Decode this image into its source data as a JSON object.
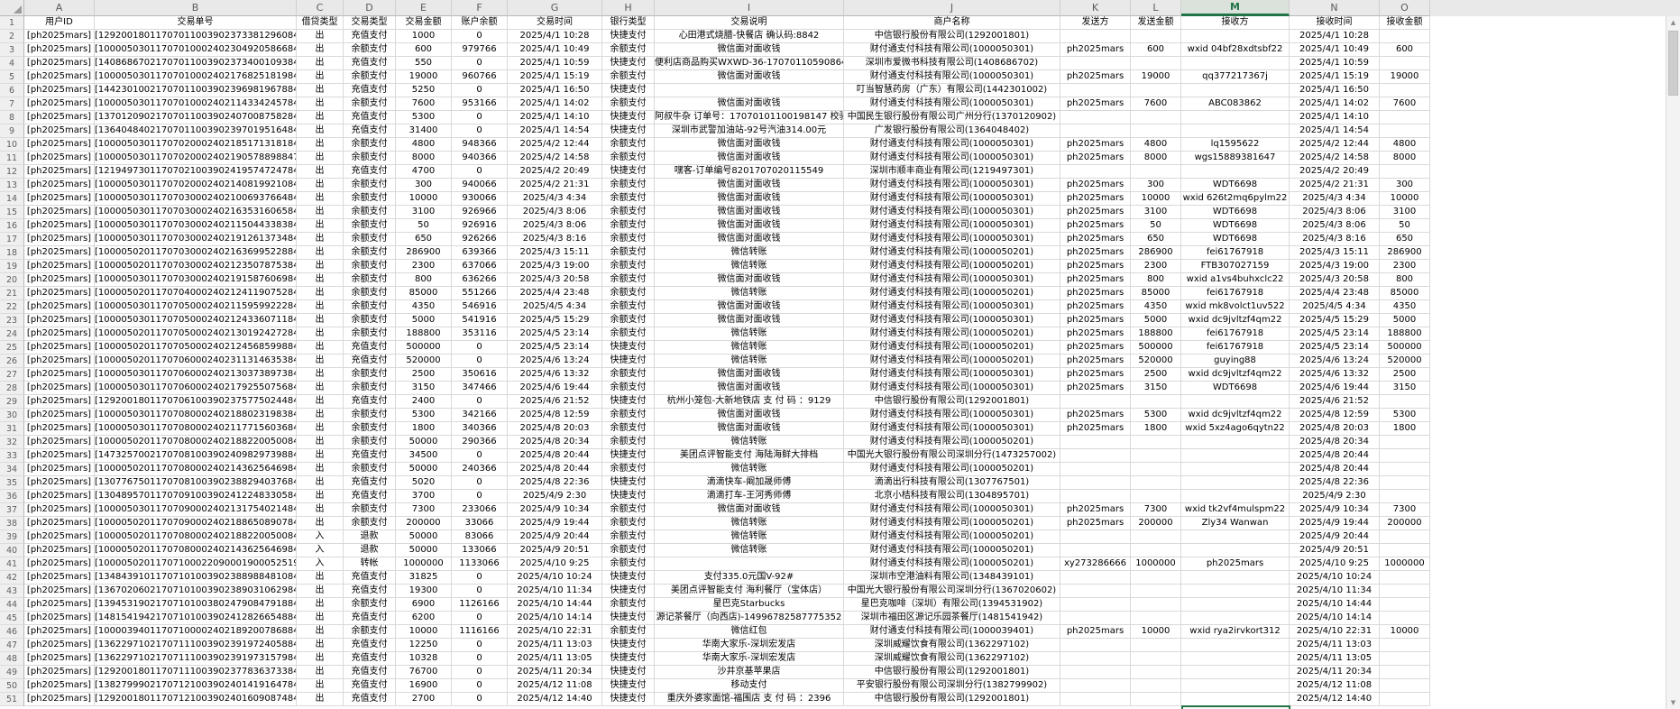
{
  "sheet": {
    "column_letters": [
      "A",
      "B",
      "C",
      "D",
      "E",
      "F",
      "G",
      "H",
      "I",
      "J",
      "K",
      "L",
      "M",
      "N",
      "O"
    ],
    "selection": {
      "active_column": "M"
    },
    "first_data_row_number": 2,
    "title_row": [
      "用户ID",
      "交易单号",
      "借贷类型",
      "交易类型",
      "交易金额",
      "账户余额",
      "交易时间",
      "银行类型",
      "交易说明",
      "商户名称",
      "发送方",
      "发送金额",
      "接收方",
      "接收时间",
      "接收金额"
    ],
    "rows": [
      [
        "[ph2025mars]",
        "[129200180117070110039023733812960847]",
        "出",
        "充值支付",
        "1000",
        "0",
        "2025/4/1 10:28",
        "快捷支付",
        "心田港式烧腊-快餐店 确认码:8842",
        "中信银行股份有限公司(1292001801)",
        "",
        "",
        "",
        "2025/4/1 10:28",
        ""
      ],
      [
        "[ph2025mars]",
        "[100005030117070100024023049205866847]",
        "出",
        "余额支付",
        "600",
        "979766",
        "2025/4/1 10:49",
        "余额支付",
        "微信面对面收钱",
        "财付通支付科技有限公司(1000050301)",
        "ph2025mars",
        "600",
        "wxid 04bf28xdtsbf22",
        "2025/4/1 10:49",
        "600"
      ],
      [
        "[ph2025mars]",
        "[140868670217070110039023734001093847]",
        "出",
        "充值支付",
        "550",
        "0",
        "2025/4/1 10:59",
        "快捷支付",
        "便利店商品购买WXWD-36-17070110590864",
        "深圳市爱微书科技有限公司(1408686702)",
        "",
        "",
        "",
        "2025/4/1 10:59",
        ""
      ],
      [
        "[ph2025mars]",
        "[100005030117070100024021768251819847]",
        "出",
        "余额支付",
        "19000",
        "960766",
        "2025/4/1 15:19",
        "余额支付",
        "微信面对面收钱",
        "财付通支付科技有限公司(1000050301)",
        "ph2025mars",
        "19000",
        "qq377217367j",
        "2025/4/1 15:19",
        "19000"
      ],
      [
        "[ph2025mars]",
        "[144230100217070110039023969819678847]",
        "出",
        "充值支付",
        "5250",
        "0",
        "2025/4/1 16:50",
        "快捷支付",
        "",
        "叮当智慧药房（广东）有限公司(1442301002)",
        "",
        "",
        "",
        "2025/4/1 16:50",
        ""
      ],
      [
        "[ph2025mars]",
        "[100005030117070100024021143342457847]",
        "出",
        "余额支付",
        "7600",
        "953166",
        "2025/4/1 14:02",
        "余额支付",
        "微信面对面收钱",
        "财付通支付科技有限公司(1000050301)",
        "ph2025mars",
        "7600",
        "ABC083862",
        "2025/4/1 14:02",
        "7600"
      ],
      [
        "[ph2025mars]",
        "[137012090217070110039024070087582847]",
        "出",
        "充值支付",
        "5300",
        "0",
        "2025/4/1 14:10",
        "快捷支付",
        "阿叔牛杂 订单号：17070101100198147 校验码",
        "中国民生银行股份有限公司广州分行(1370120902)",
        "",
        "",
        "",
        "2025/4/1 14:10",
        ""
      ],
      [
        "[ph2025mars]",
        "[136404840217070110039023970195164847]",
        "出",
        "充值支付",
        "31400",
        "0",
        "2025/4/1 14:54",
        "快捷支付",
        "深圳市武警加油站-92号汽油314.00元",
        "广发银行股份有限公司(1364048402)",
        "",
        "",
        "",
        "2025/4/1 14:54",
        ""
      ],
      [
        "[ph2025mars]",
        "[100005030117070200024021851713181847]",
        "出",
        "余额支付",
        "4800",
        "948366",
        "2025/4/2 12:44",
        "余额支付",
        "微信面对面收钱",
        "财付通支付科技有限公司(1000050301)",
        "ph2025mars",
        "4800",
        "lq1595622",
        "2025/4/2 12:44",
        "4800"
      ],
      [
        "[ph2025mars]",
        "[10000503011707020002402190578898847]",
        "出",
        "余额支付",
        "8000",
        "940366",
        "2025/4/2 14:58",
        "余额支付",
        "微信面对面收钱",
        "财付通支付科技有限公司(1000050301)",
        "ph2025mars",
        "8000",
        "wgs15889381647",
        "2025/4/2 14:58",
        "8000"
      ],
      [
        "[ph2025mars]",
        "[121949730117070210039024195747247847]",
        "出",
        "充值支付",
        "4700",
        "0",
        "2025/4/2 20:49",
        "快捷支付",
        "嘿客-订单编号8201707020115549",
        "深圳市顺丰商业有限公司(1219497301)",
        "",
        "",
        "",
        "2025/4/2 20:49",
        ""
      ],
      [
        "[ph2025mars]",
        "[100005030117070200024021408199210847]",
        "出",
        "余额支付",
        "300",
        "940066",
        "2025/4/2 21:31",
        "余额支付",
        "微信面对面收钱",
        "财付通支付科技有限公司(1000050301)",
        "ph2025mars",
        "300",
        "WDT6698",
        "2025/4/2 21:31",
        "300"
      ],
      [
        "[ph2025mars]",
        "[100005030117070300024021006937664847]",
        "出",
        "余额支付",
        "10000",
        "930066",
        "2025/4/3 4:34",
        "余额支付",
        "微信面对面收钱",
        "财付通支付科技有限公司(1000050301)",
        "ph2025mars",
        "10000",
        "wxid 626t2mq6pylm22",
        "2025/4/3 4:34",
        "10000"
      ],
      [
        "[ph2025mars]",
        "[100005030117070300024021635316065847]",
        "出",
        "余额支付",
        "3100",
        "926966",
        "2025/4/3 8:06",
        "余额支付",
        "微信面对面收钱",
        "财付通支付科技有限公司(1000050301)",
        "ph2025mars",
        "3100",
        "WDT6698",
        "2025/4/3 8:06",
        "3100"
      ],
      [
        "[ph2025mars]",
        "[100005030117070300024021150443383847]",
        "出",
        "余额支付",
        "50",
        "926916",
        "2025/4/3 8:06",
        "余额支付",
        "微信面对面收钱",
        "财付通支付科技有限公司(1000050301)",
        "ph2025mars",
        "50",
        "WDT6698",
        "2025/4/3 8:06",
        "50"
      ],
      [
        "[ph2025mars]",
        "[100005030117070300024021912613734847]",
        "出",
        "余额支付",
        "650",
        "926266",
        "2025/4/3 8:16",
        "余额支付",
        "微信面对面收钱",
        "财付通支付科技有限公司(1000050301)",
        "ph2025mars",
        "650",
        "WDT6698",
        "2025/4/3 8:16",
        "650"
      ],
      [
        "[ph2025mars]",
        "[100005020117070300024021636995228847]",
        "出",
        "余额支付",
        "286900",
        "639366",
        "2025/4/3 15:11",
        "余额支付",
        "微信转账",
        "财付通支付科技有限公司(1000050201)",
        "ph2025mars",
        "286900",
        "fei61767918",
        "2025/4/3 15:11",
        "286900"
      ],
      [
        "[ph2025mars]",
        "[100005020117070300024021235078753847]",
        "出",
        "余额支付",
        "2300",
        "637066",
        "2025/4/3 19:00",
        "余额支付",
        "微信转账",
        "财付通支付科技有限公司(1000050201)",
        "ph2025mars",
        "2300",
        "FTB307027159",
        "2025/4/3 19:00",
        "2300"
      ],
      [
        "[ph2025mars]",
        "[100005030117070300024021915876069847]",
        "出",
        "余额支付",
        "800",
        "636266",
        "2025/4/3 20:58",
        "余额支付",
        "微信面对面收钱",
        "财付通支付科技有限公司(1000050301)",
        "ph2025mars",
        "800",
        "wxid a1vs4buhxclc22",
        "2025/4/3 20:58",
        "800"
      ],
      [
        "[ph2025mars]",
        "[100005020117070400024021241190752847]",
        "出",
        "余额支付",
        "85000",
        "551266",
        "2025/4/4 23:48",
        "余额支付",
        "微信转账",
        "财付通支付科技有限公司(1000050201)",
        "ph2025mars",
        "85000",
        "fei61767918",
        "2025/4/4 23:48",
        "85000"
      ],
      [
        "[ph2025mars]",
        "[100005030117070500024021159599222847]",
        "出",
        "余额支付",
        "4350",
        "546916",
        "2025/4/5 4:34",
        "余额支付",
        "微信面对面收钱",
        "财付通支付科技有限公司(1000050301)",
        "ph2025mars",
        "4350",
        "wxid mk8volct1uv522",
        "2025/4/5 4:34",
        "4350"
      ],
      [
        "[ph2025mars]",
        "[100005030117070500024021243360711847]",
        "出",
        "余额支付",
        "5000",
        "541916",
        "2025/4/5 15:29",
        "余额支付",
        "微信面对面收钱",
        "财付通支付科技有限公司(1000050301)",
        "ph2025mars",
        "5000",
        "wxid dc9jvltzf4qm22",
        "2025/4/5 15:29",
        "5000"
      ],
      [
        "[ph2025mars]",
        "[100005020117070500024021301924272847]",
        "出",
        "余额支付",
        "188800",
        "353116",
        "2025/4/5 23:14",
        "余额支付",
        "微信转账",
        "财付通支付科技有限公司(1000050201)",
        "ph2025mars",
        "188800",
        "fei61767918",
        "2025/4/5 23:14",
        "188800"
      ],
      [
        "[ph2025mars]",
        "[100005020117070500024021245685998847]",
        "出",
        "充值支付",
        "500000",
        "0",
        "2025/4/5 23:14",
        "快捷支付",
        "微信转账",
        "财付通支付科技有限公司(1000050201)",
        "ph2025mars",
        "500000",
        "fei61767918",
        "2025/4/5 23:14",
        "500000"
      ],
      [
        "[ph2025mars]",
        "[100005020117070600024023113146353847]",
        "出",
        "充值支付",
        "520000",
        "0",
        "2025/4/6 13:24",
        "快捷支付",
        "微信转账",
        "财付通支付科技有限公司(1000050201)",
        "ph2025mars",
        "520000",
        "guying88",
        "2025/4/6 13:24",
        "520000"
      ],
      [
        "[ph2025mars]",
        "[100005030117070600024021303738973847]",
        "出",
        "余额支付",
        "2500",
        "350616",
        "2025/4/6 13:32",
        "余额支付",
        "微信面对面收钱",
        "财付通支付科技有限公司(1000050301)",
        "ph2025mars",
        "2500",
        "wxid dc9jvltzf4qm22",
        "2025/4/6 13:32",
        "2500"
      ],
      [
        "[ph2025mars]",
        "[100005030117070600024021792550756847]",
        "出",
        "余额支付",
        "3150",
        "347466",
        "2025/4/6 19:44",
        "余额支付",
        "微信面对面收钱",
        "财付通支付科技有限公司(1000050301)",
        "ph2025mars",
        "3150",
        "WDT6698",
        "2025/4/6 19:44",
        "3150"
      ],
      [
        "[ph2025mars]",
        "[129200180117070610039023757750244847]",
        "出",
        "充值支付",
        "2400",
        "0",
        "2025/4/6 21:52",
        "快捷支付",
        "杭州小笼包-大新地铁店 支 付 码 ：9129",
        "中信银行股份有限公司(1292001801)",
        "",
        "",
        "",
        "2025/4/6 21:52",
        ""
      ],
      [
        "[ph2025mars]",
        "[100005030117070800024021880231983847]",
        "出",
        "余额支付",
        "5300",
        "342166",
        "2025/4/8 12:59",
        "余额支付",
        "微信面对面收钱",
        "财付通支付科技有限公司(1000050301)",
        "ph2025mars",
        "5300",
        "wxid dc9jvltzf4qm22",
        "2025/4/8 12:59",
        "5300"
      ],
      [
        "[ph2025mars]",
        "[100005030117070800024021177156036847]",
        "出",
        "余额支付",
        "1800",
        "340366",
        "2025/4/8 20:03",
        "余额支付",
        "微信面对面收钱",
        "财付通支付科技有限公司(1000050301)",
        "ph2025mars",
        "1800",
        "wxid 5xz4ago6qytn22",
        "2025/4/8 20:03",
        "1800"
      ],
      [
        "[ph2025mars]",
        "[100005020117070800024021882200500847]",
        "出",
        "余额支付",
        "50000",
        "290366",
        "2025/4/8 20:34",
        "余额支付",
        "微信转账",
        "财付通支付科技有限公司(1000050201)",
        "",
        "",
        "",
        "2025/4/8 20:34",
        ""
      ],
      [
        "[ph2025mars]",
        "[147325700217070810039024098297398847]",
        "出",
        "充值支付",
        "34500",
        "0",
        "2025/4/8 20:44",
        "快捷支付",
        "美团点评智能支付 海陆海鲜大排档",
        "中国光大银行股份有限公司深圳分行(1473257002)",
        "",
        "",
        "",
        "2025/4/8 20:44",
        ""
      ],
      [
        "[ph2025mars]",
        "[100005020117070800024021436256469847]",
        "出",
        "余额支付",
        "50000",
        "240366",
        "2025/4/8 20:44",
        "余额支付",
        "微信转账",
        "财付通支付科技有限公司(1000050201)",
        "",
        "",
        "",
        "2025/4/8 20:44",
        ""
      ],
      [
        "[ph2025mars]",
        "[130776750117070810039023882940376847]",
        "出",
        "充值支付",
        "5020",
        "0",
        "2025/4/8 22:36",
        "快捷支付",
        "滴滴快车-阚加晟师傅",
        "滴滴出行科技有限公司(1307767501)",
        "",
        "",
        "",
        "2025/4/8 22:36",
        ""
      ],
      [
        "[ph2025mars]",
        "[130489570117070910039024122483305847]",
        "出",
        "充值支付",
        "3700",
        "0",
        "2025/4/9 2:30",
        "快捷支付",
        "滴滴打车-王河秀师傅",
        "北京小桔科技有限公司(1304895701)",
        "",
        "",
        "",
        "2025/4/9 2:30",
        ""
      ],
      [
        "[ph2025mars]",
        "[100005030117070900024021317540214847]",
        "出",
        "余额支付",
        "7300",
        "233066",
        "2025/4/9 10:34",
        "余额支付",
        "微信面对面收钱",
        "财付通支付科技有限公司(1000050301)",
        "ph2025mars",
        "7300",
        "wxid tk2vf4mulspm22",
        "2025/4/9 10:34",
        "7300"
      ],
      [
        "[ph2025mars]",
        "[100005020117070900024021886508907847]",
        "出",
        "余额支付",
        "200000",
        "33066",
        "2025/4/9 19:44",
        "余额支付",
        "微信转账",
        "财付通支付科技有限公司(1000050201)",
        "ph2025mars",
        "200000",
        "Zly34 Wanwan",
        "2025/4/9 19:44",
        "200000"
      ],
      [
        "[ph2025mars]",
        "[100005020117070800024021882200500847]",
        "入",
        "退款",
        "50000",
        "83066",
        "2025/4/9 20:44",
        "余额支付",
        "微信转账",
        "财付通支付科技有限公司(1000050201)",
        "",
        "",
        "",
        "2025/4/9 20:44",
        ""
      ],
      [
        "[ph2025mars]",
        "[100005020117070800024021436256469847]",
        "入",
        "退款",
        "50000",
        "133066",
        "2025/4/9 20:51",
        "余额支付",
        "微信转账",
        "财付通支付科技有限公司(1000050201)",
        "",
        "",
        "",
        "2025/4/9 20:51",
        ""
      ],
      [
        "[ph2025mars]",
        "[1000050201170710002209000190005251956847]",
        "入",
        "转帐",
        "1000000",
        "1133066",
        "2025/4/10 9:25",
        "余额支付",
        "",
        "财付通支付科技有限公司(1000050201)",
        "xy273286666",
        "1000000",
        "ph2025mars",
        "2025/4/10 9:25",
        "1000000"
      ],
      [
        "[ph2025mars]",
        "[134843910117071010039023889884810847]",
        "出",
        "充值支付",
        "31825",
        "0",
        "2025/4/10 10:24",
        "快捷支付",
        "支付335.0元国V-92#",
        "深圳市空港油料有限公司(1348439101)",
        "",
        "",
        "",
        "2025/4/10 10:24",
        ""
      ],
      [
        "[ph2025mars]",
        "[136702060217071010039023890310629847]",
        "出",
        "充值支付",
        "19300",
        "0",
        "2025/4/10 11:34",
        "快捷支付",
        "美团点评智能支付 海利餐厅（宝体店）",
        "中国光大银行股份有限公司深圳分行(1367020602)",
        "",
        "",
        "",
        "2025/4/10 11:34",
        ""
      ],
      [
        "[ph2025mars]",
        "[139453190217071010038024790847918847]",
        "出",
        "余额支付",
        "6900",
        "1126166",
        "2025/4/10 14:44",
        "余额支付",
        "星巴克Starbucks",
        "星巴克咖啡（深圳）有限公司(1394531902)",
        "",
        "",
        "",
        "2025/4/10 14:44",
        ""
      ],
      [
        "[ph2025mars]",
        "[148154194217071010039024128266548847]",
        "出",
        "充值支付",
        "6200",
        "0",
        "2025/4/10 14:14",
        "快捷支付",
        "源记茶餐厅（向西店)-14996782587775352",
        "深圳市福田区源记乐园茶餐厅(1481541942)",
        "",
        "",
        "",
        "2025/4/10 14:14",
        ""
      ],
      [
        "[ph2025mars]",
        "[100003940117071000024021892007868847]",
        "出",
        "余额支付",
        "10000",
        "1116166",
        "2025/4/10 22:31",
        "余额支付",
        "微信红包",
        "财付通支付科技有限公司(1000039401)",
        "ph2025mars",
        "10000",
        "wxid rya2irvkort312",
        "2025/4/10 22:31",
        "10000"
      ],
      [
        "[ph2025mars]",
        "[136229710217071110039023919724058847]",
        "出",
        "充值支付",
        "12250",
        "0",
        "2025/4/11 13:03",
        "快捷支付",
        "华南大家乐-深圳宏发店",
        "深圳威耀饮食有限公司(1362297102)",
        "",
        "",
        "",
        "2025/4/11 13:03",
        ""
      ],
      [
        "[ph2025mars]",
        "[136229710217071110039023919731579847]",
        "出",
        "充值支付",
        "10328",
        "0",
        "2025/4/11 13:05",
        "快捷支付",
        "华南大家乐-深圳宏发店",
        "深圳威耀饮食有限公司(1362297102)",
        "",
        "",
        "",
        "2025/4/11 13:05",
        ""
      ],
      [
        "[ph2025mars]",
        "[129200180117071110039023778363733847]",
        "出",
        "充值支付",
        "76700",
        "0",
        "2025/4/11 20:34",
        "快捷支付",
        "沙井京基苹果店",
        "中信银行股份有限公司(1292001801)",
        "",
        "",
        "",
        "2025/4/11 20:34",
        ""
      ],
      [
        "[ph2025mars]",
        "[138279990217071210039024014191647847]",
        "出",
        "充值支付",
        "16900",
        "0",
        "2025/4/12 11:08",
        "快捷支付",
        "移动支付",
        "平安银行股份有限公司深圳分行(1382799902)",
        "",
        "",
        "",
        "2025/4/12 11:08",
        ""
      ],
      [
        "[ph2025mars]",
        "[129200180117071210039024016090874847]",
        "出",
        "充值支付",
        "2700",
        "0",
        "2025/4/12 14:40",
        "快捷支付",
        "重庆外婆家面馆-福围店 支 付 码 ：2396",
        "中信银行股份有限公司(1292001801)",
        "",
        "",
        "",
        "2025/4/12 14:40",
        ""
      ]
    ]
  },
  "scrollbar": {
    "up_icon": "▲",
    "down_icon": "▼"
  },
  "colors": {
    "accent_green": "#217346",
    "header_bg": "#e9e9e9",
    "header_active_bg": "#dbe2db",
    "grid_line": "#d9d9d9"
  }
}
